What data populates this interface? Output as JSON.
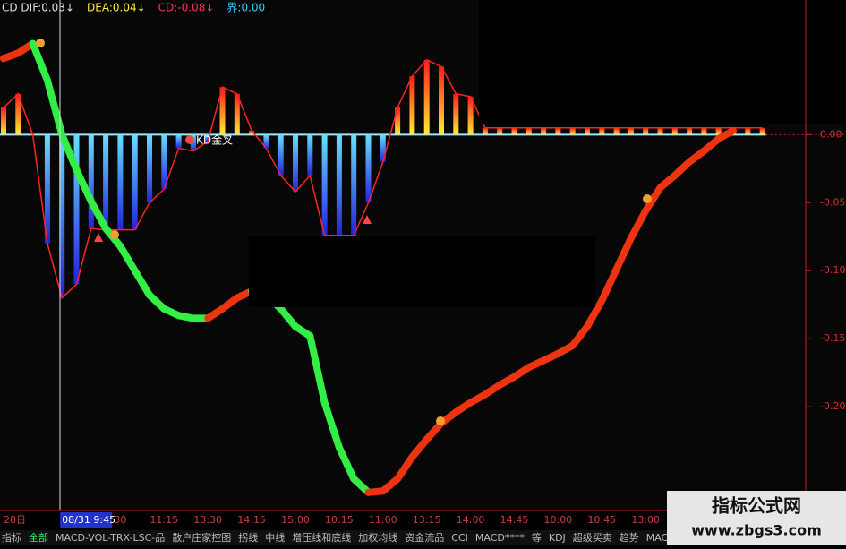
{
  "header": {
    "items": [
      {
        "text": "CD DIF:0.03↓",
        "color": "#e0e0e0"
      },
      {
        "text": "DEA:0.04↓",
        "color": "#ffee33"
      },
      {
        "text": "CD:-0.08↓",
        "color": "#ff3355"
      },
      {
        "text": "界:0.00",
        "color": "#33ccff"
      }
    ]
  },
  "chart_data": {
    "type": "macd",
    "categories": [
      "28日",
      null,
      null,
      null,
      "08/31 9:45",
      null,
      null,
      null,
      "30",
      null,
      null,
      "11:15",
      null,
      null,
      "13:30",
      null,
      null,
      "14:15",
      null,
      null,
      "15:00",
      null,
      null,
      "10:15",
      null,
      null,
      "11:00",
      null,
      null,
      "13:15",
      null,
      null,
      "14:00",
      null,
      null,
      "14:45",
      null,
      null,
      "10:00",
      null,
      null,
      "10:45",
      null,
      null,
      "13:00",
      null,
      null,
      null,
      null,
      null,
      null,
      null,
      null,
      null,
      null,
      null
    ],
    "cursor": 4,
    "histogram": {
      "up_colors": [
        "#ff1a1a",
        "#ffee33"
      ],
      "down_colors": [
        "#66e0ff",
        "#2222dd"
      ],
      "outline_color": "#ff2222",
      "values": [
        0.02,
        0.03,
        0.0,
        -0.08,
        -0.12,
        -0.11,
        -0.069,
        -0.07,
        -0.07,
        -0.07,
        -0.05,
        -0.04,
        -0.01,
        -0.012,
        -0.005,
        0.035,
        0.03,
        0.003,
        -0.01,
        -0.03,
        -0.042,
        -0.03,
        -0.074,
        -0.074,
        -0.074,
        -0.05,
        -0.02,
        0.02,
        0.043,
        0.055,
        0.05,
        0.03,
        0.028,
        0.005,
        0.005,
        0.005,
        0.005,
        0.005,
        0.005,
        0.005,
        0.005,
        0.005,
        0.005,
        0.005,
        0.005,
        0.005,
        0.005,
        0.005,
        0.005,
        0.005,
        0.005,
        0.005,
        0.005,
        null,
        null,
        null
      ]
    },
    "line": {
      "up_color": "#ee3311",
      "down_color": "#33ee44",
      "values": [
        0.056,
        0.06,
        0.067,
        0.04,
        0.0,
        -0.026,
        -0.049,
        -0.069,
        -0.082,
        -0.1,
        -0.118,
        -0.128,
        -0.133,
        -0.135,
        -0.135,
        -0.128,
        -0.12,
        -0.115,
        -0.118,
        -0.128,
        -0.141,
        -0.148,
        -0.197,
        -0.23,
        -0.253,
        -0.263,
        -0.262,
        -0.253,
        -0.237,
        -0.224,
        -0.212,
        -0.204,
        -0.197,
        -0.191,
        -0.184,
        -0.178,
        -0.171,
        -0.166,
        -0.161,
        -0.155,
        -0.141,
        -0.122,
        -0.099,
        -0.076,
        -0.056,
        -0.039,
        -0.03,
        -0.02,
        -0.012,
        -0.003,
        0.003,
        null,
        null,
        null,
        null,
        null
      ]
    },
    "ylim": [
      -0.273,
      0.099
    ],
    "yticks": [
      {
        "value": 0,
        "label": "0.00"
      },
      -0.05,
      {
        "value": -0.1,
        "label": "-0.10"
      },
      -0.15,
      {
        "value": -0.2,
        "label": "-0.20"
      }
    ],
    "annotations": [
      "KD金叉"
    ]
  },
  "tabs": [
    "指标",
    "全部",
    "MACD-VOL-TRX-LSC-品",
    "散户庄家控图",
    "拐线",
    "中线",
    "增压线和底线",
    "加权均线",
    "资金流品",
    "CCI",
    "MACD****",
    "等",
    "KDJ",
    "超级买卖",
    "趋势",
    "MACD**"
  ],
  "watermark": {
    "title": "指标公式网",
    "url": "www.zbgs3.com"
  }
}
